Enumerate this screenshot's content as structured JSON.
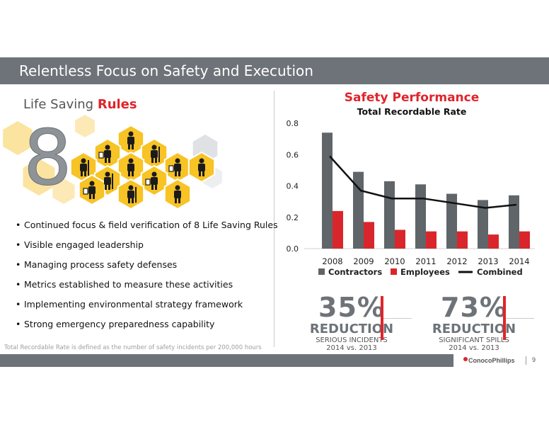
{
  "header": {
    "title": "Relentless  Focus on Safety and Execution"
  },
  "life_saving_rules": {
    "title_part1": "Life Saving ",
    "title_part2": "Rules",
    "big_number": "8",
    "icons": [
      "worker-icon",
      "people-icon",
      "ladder-icon",
      "harness-icon",
      "crane-icon",
      "lockout-icon",
      "excavator-icon",
      "permit-icon",
      "gauge-icon",
      "electrical-icon"
    ]
  },
  "bullets": [
    "Continued focus & field verification of 8 Life Saving Rules",
    "Visible engaged leadership",
    "Managing process safety defenses",
    "Metrics established to measure these activities",
    "Implementing  environmental  strategy framework",
    "Strong emergency  preparedness  capability"
  ],
  "footnote": "Total Recordable Rate is defined as the number  of safety incidents per 200,000 hours",
  "chart_title": "Safety Performance",
  "chart_subtitle": "Total Recordable Rate",
  "chart_data": {
    "type": "bar",
    "title": "Safety Performance",
    "subtitle": "Total Recordable Rate",
    "categories": [
      "2008",
      "2009",
      "2010",
      "2011",
      "2012",
      "2013",
      "2014"
    ],
    "series": [
      {
        "name": "Contractors",
        "type": "bar",
        "color": "#5f6569",
        "values": [
          0.74,
          0.49,
          0.43,
          0.41,
          0.35,
          0.31,
          0.34
        ]
      },
      {
        "name": "Employees",
        "type": "bar",
        "color": "#d9262c",
        "values": [
          0.24,
          0.17,
          0.12,
          0.11,
          0.11,
          0.09,
          0.11
        ]
      },
      {
        "name": "Combined",
        "type": "line",
        "color": "#111111",
        "values": [
          0.59,
          0.37,
          0.32,
          0.32,
          0.29,
          0.26,
          0.28
        ]
      }
    ],
    "ylim": [
      0,
      0.8
    ],
    "yticks": [
      "0.0",
      "0.2",
      "0.4",
      "0.6",
      "0.8"
    ],
    "grid": false,
    "legend": "bottom"
  },
  "stats": [
    {
      "pct": "35%",
      "label": "REDUCTION",
      "line1": "SERIOUS INCIDENTS",
      "line2": "2014 vs. 2013"
    },
    {
      "pct": "73%",
      "label": "REDUCTION",
      "line1": "SIGNIFICANT SPILLS",
      "line2": "2014 vs. 2013"
    }
  ],
  "footer": {
    "logo": "ConocoPhillips",
    "page": "9"
  },
  "colors": {
    "accent": "#e0242b",
    "gray": "#6d7378",
    "hex_yellow": "#f7c325",
    "hex_light": "#fbe3a0"
  }
}
